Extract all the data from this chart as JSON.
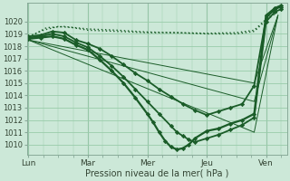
{
  "bg_color": "#cce8d8",
  "grid_color": "#99ccaa",
  "line_color": "#1a5c28",
  "xlabel": "Pression niveau de la mer( hPa )",
  "xtick_labels": [
    "Lun",
    "Mar",
    "Mer",
    "Jeu",
    "Ven"
  ],
  "xtick_positions": [
    0,
    1,
    2,
    3,
    4
  ],
  "ylim": [
    1009.2,
    1021.5
  ],
  "yticks": [
    1010,
    1011,
    1012,
    1013,
    1014,
    1015,
    1016,
    1017,
    1018,
    1019,
    1020
  ],
  "xlim": [
    -0.02,
    4.35
  ],
  "lines": [
    {
      "x": [
        0.0,
        0.25,
        0.5,
        0.75,
        1.0,
        1.5,
        2.0,
        2.5,
        3.0,
        3.5,
        3.8,
        4.0,
        4.2
      ],
      "y": [
        1018.8,
        1019.3,
        1019.6,
        1019.5,
        1019.3,
        1019.2,
        1019.1,
        1019.1,
        1019.0,
        1019.0,
        1019.2,
        1020.1,
        1020.8
      ],
      "style": "dotted",
      "marker": null,
      "linewidth": 1.0
    },
    {
      "x": [
        0.0,
        0.3,
        0.6,
        1.0,
        1.5,
        2.0,
        2.5,
        3.0,
        3.5,
        3.8,
        4.0,
        4.2
      ],
      "y": [
        1018.7,
        1019.5,
        1019.6,
        1019.4,
        1019.3,
        1019.15,
        1019.1,
        1019.05,
        1019.1,
        1019.3,
        1020.2,
        1020.9
      ],
      "style": "dotted",
      "marker": null,
      "linewidth": 1.0
    },
    {
      "x": [
        0.0,
        3.8,
        4.2
      ],
      "y": [
        1018.5,
        1015.0,
        1020.5
      ],
      "style": "thin_solid",
      "marker": null,
      "linewidth": 0.7
    },
    {
      "x": [
        0.0,
        3.8,
        4.2
      ],
      "y": [
        1018.5,
        1013.5,
        1020.5
      ],
      "style": "thin_solid",
      "marker": null,
      "linewidth": 0.7
    },
    {
      "x": [
        0.0,
        3.8,
        4.2
      ],
      "y": [
        1018.5,
        1011.0,
        1020.5
      ],
      "style": "thin_solid",
      "marker": null,
      "linewidth": 0.7
    },
    {
      "x": [
        0.0,
        0.2,
        0.4,
        0.6,
        0.8,
        1.0,
        1.2,
        1.4,
        1.6,
        1.8,
        2.0,
        2.2,
        2.4,
        2.6,
        2.8,
        3.0,
        3.2,
        3.4,
        3.6,
        3.8,
        4.0,
        4.15,
        4.25
      ],
      "y": [
        1018.8,
        1018.9,
        1019.2,
        1019.1,
        1018.5,
        1018.2,
        1017.8,
        1017.2,
        1016.5,
        1015.8,
        1015.2,
        1014.5,
        1013.9,
        1013.3,
        1012.8,
        1012.4,
        1012.7,
        1013.0,
        1013.3,
        1014.8,
        1020.3,
        1021.0,
        1021.2
      ],
      "style": "solid",
      "marker": "D",
      "markersize": 2.2,
      "linewidth": 1.3
    },
    {
      "x": [
        0.0,
        0.2,
        0.4,
        0.6,
        0.8,
        1.0,
        1.2,
        1.4,
        1.6,
        1.8,
        2.0,
        2.2,
        2.4,
        2.5,
        2.6,
        2.7,
        2.8,
        3.0,
        3.2,
        3.4,
        3.6,
        3.8,
        4.0,
        4.15,
        4.25
      ],
      "y": [
        1018.7,
        1018.8,
        1019.0,
        1018.8,
        1018.3,
        1017.9,
        1017.2,
        1016.4,
        1015.5,
        1014.5,
        1013.5,
        1012.5,
        1011.5,
        1011.0,
        1010.7,
        1010.4,
        1010.2,
        1010.5,
        1010.8,
        1011.2,
        1011.6,
        1012.2,
        1020.0,
        1020.8,
        1021.0
      ],
      "style": "solid",
      "marker": "D",
      "markersize": 2.2,
      "linewidth": 1.3
    },
    {
      "x": [
        0.0,
        0.2,
        0.4,
        0.6,
        0.8,
        1.0,
        1.2,
        1.4,
        1.6,
        1.8,
        2.0,
        2.1,
        2.2,
        2.3,
        2.4,
        2.5,
        2.6,
        2.7,
        2.8,
        3.0,
        3.2,
        3.4,
        3.6,
        3.8,
        4.0,
        4.15,
        4.25
      ],
      "y": [
        1018.6,
        1018.7,
        1018.8,
        1018.6,
        1018.1,
        1017.7,
        1016.9,
        1016.0,
        1015.0,
        1013.8,
        1012.5,
        1011.8,
        1011.0,
        1010.3,
        1009.8,
        1009.6,
        1009.7,
        1010.0,
        1010.5,
        1011.1,
        1011.3,
        1011.7,
        1012.0,
        1012.5,
        1020.5,
        1021.1,
        1021.3
      ],
      "style": "solid",
      "marker": "D",
      "markersize": 2.2,
      "linewidth": 1.6
    }
  ]
}
